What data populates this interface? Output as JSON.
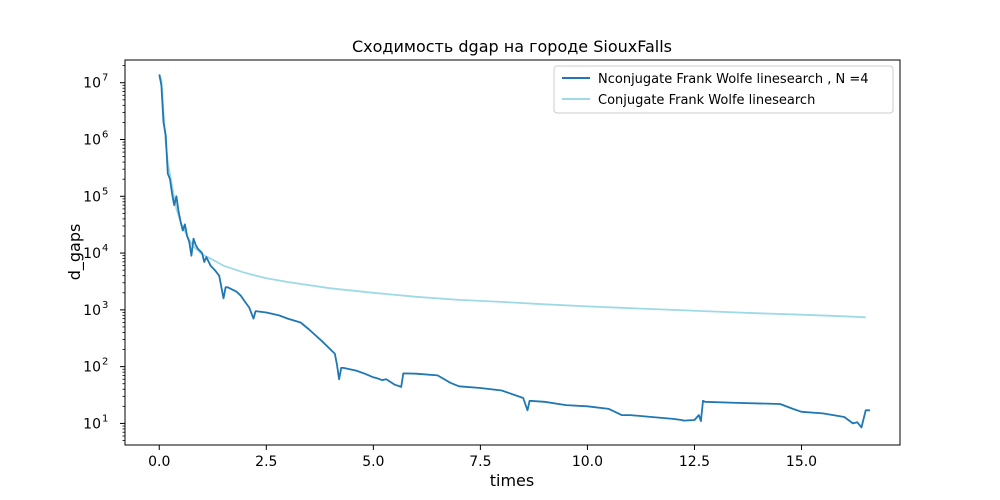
{
  "chart_data": {
    "type": "line",
    "title": "Сходимость dgap на городе SiouxFalls",
    "xlabel": "times",
    "ylabel": "d_gaps",
    "xlim": [
      -0.8,
      17.3
    ],
    "ylim_log10": [
      0.62,
      7.4
    ],
    "yscale": "log",
    "x_ticks": [
      0.0,
      2.5,
      5.0,
      7.5,
      10.0,
      12.5,
      15.0
    ],
    "x_tick_labels": [
      "0.0",
      "2.5",
      "5.0",
      "7.5",
      "10.0",
      "12.5",
      "15.0"
    ],
    "y_ticks_log10": [
      1,
      2,
      3,
      4,
      5,
      6,
      7
    ],
    "y_tick_bases": [
      "10",
      "10",
      "10",
      "10",
      "10",
      "10",
      "10"
    ],
    "y_tick_exps": [
      "1",
      "2",
      "3",
      "4",
      "5",
      "6",
      "7"
    ],
    "legend_position": "top-right",
    "series": [
      {
        "name": "Nconjugate Frank Wolfe linesearch , N =4",
        "color": "#1f77b4",
        "x": [
          0.0,
          0.05,
          0.1,
          0.15,
          0.2,
          0.25,
          0.3,
          0.35,
          0.4,
          0.45,
          0.5,
          0.55,
          0.6,
          0.65,
          0.7,
          0.75,
          0.8,
          0.85,
          0.9,
          0.95,
          1.0,
          1.05,
          1.1,
          1.2,
          1.3,
          1.4,
          1.5,
          1.55,
          1.6,
          1.8,
          1.9,
          2.0,
          2.1,
          2.2,
          2.25,
          2.5,
          2.8,
          3.0,
          3.3,
          3.5,
          3.8,
          4.0,
          4.1,
          4.15,
          4.2,
          4.25,
          4.3,
          4.6,
          4.8,
          5.0,
          5.1,
          5.2,
          5.3,
          5.5,
          5.65,
          5.7,
          6.0,
          6.5,
          6.8,
          7.0,
          7.5,
          8.0,
          8.5,
          8.6,
          8.65,
          9.0,
          9.5,
          10.0,
          10.5,
          10.8,
          11.0,
          11.5,
          12.0,
          12.2,
          12.25,
          12.5,
          12.6,
          12.65,
          12.7,
          12.75,
          13.5,
          14.5,
          14.8,
          15.0,
          15.5,
          16.0,
          16.2,
          16.3,
          16.4,
          16.5,
          16.6
        ],
        "y": [
          14000000,
          9000000,
          2000000,
          1200000,
          250000,
          200000,
          110000,
          70000,
          100000,
          55000,
          35000,
          25000,
          32000,
          20000,
          16000,
          9000,
          18000,
          14000,
          12000,
          11000,
          10000,
          7000,
          8500,
          6000,
          5000,
          4000,
          1600,
          2500,
          2500,
          2100,
          1800,
          1400,
          1100,
          700,
          950,
          900,
          800,
          700,
          600,
          450,
          280,
          200,
          170,
          110,
          60,
          95,
          95,
          85,
          75,
          65,
          62,
          58,
          60,
          48,
          44,
          76,
          75,
          70,
          52,
          45,
          42,
          38,
          28,
          17,
          25,
          24,
          21,
          20,
          18,
          14,
          14,
          13,
          12,
          11.5,
          11.2,
          11.5,
          14,
          11,
          25,
          24,
          23,
          22,
          18,
          16,
          15,
          13,
          10,
          10.5,
          8.5,
          17,
          17
        ]
      },
      {
        "name": "Conjugate Frank Wolfe linesearch",
        "color": "#9edae5",
        "x": [
          0.0,
          0.05,
          0.1,
          0.15,
          0.2,
          0.3,
          0.4,
          0.5,
          0.6,
          0.7,
          0.8,
          1.0,
          1.2,
          1.5,
          2.0,
          2.5,
          3.0,
          4.0,
          5.0,
          6.0,
          7.0,
          8.0,
          9.0,
          10.0,
          11.0,
          12.0,
          13.0,
          14.0,
          15.0,
          16.0,
          16.5
        ],
        "y": [
          14000000,
          11000000,
          3000000,
          900000,
          400000,
          150000,
          60000,
          35000,
          24000,
          17000,
          13000,
          9500,
          8000,
          6000,
          4500,
          3600,
          3100,
          2400,
          2000,
          1700,
          1500,
          1380,
          1250,
          1150,
          1070,
          1000,
          930,
          870,
          820,
          770,
          740
        ]
      }
    ]
  }
}
